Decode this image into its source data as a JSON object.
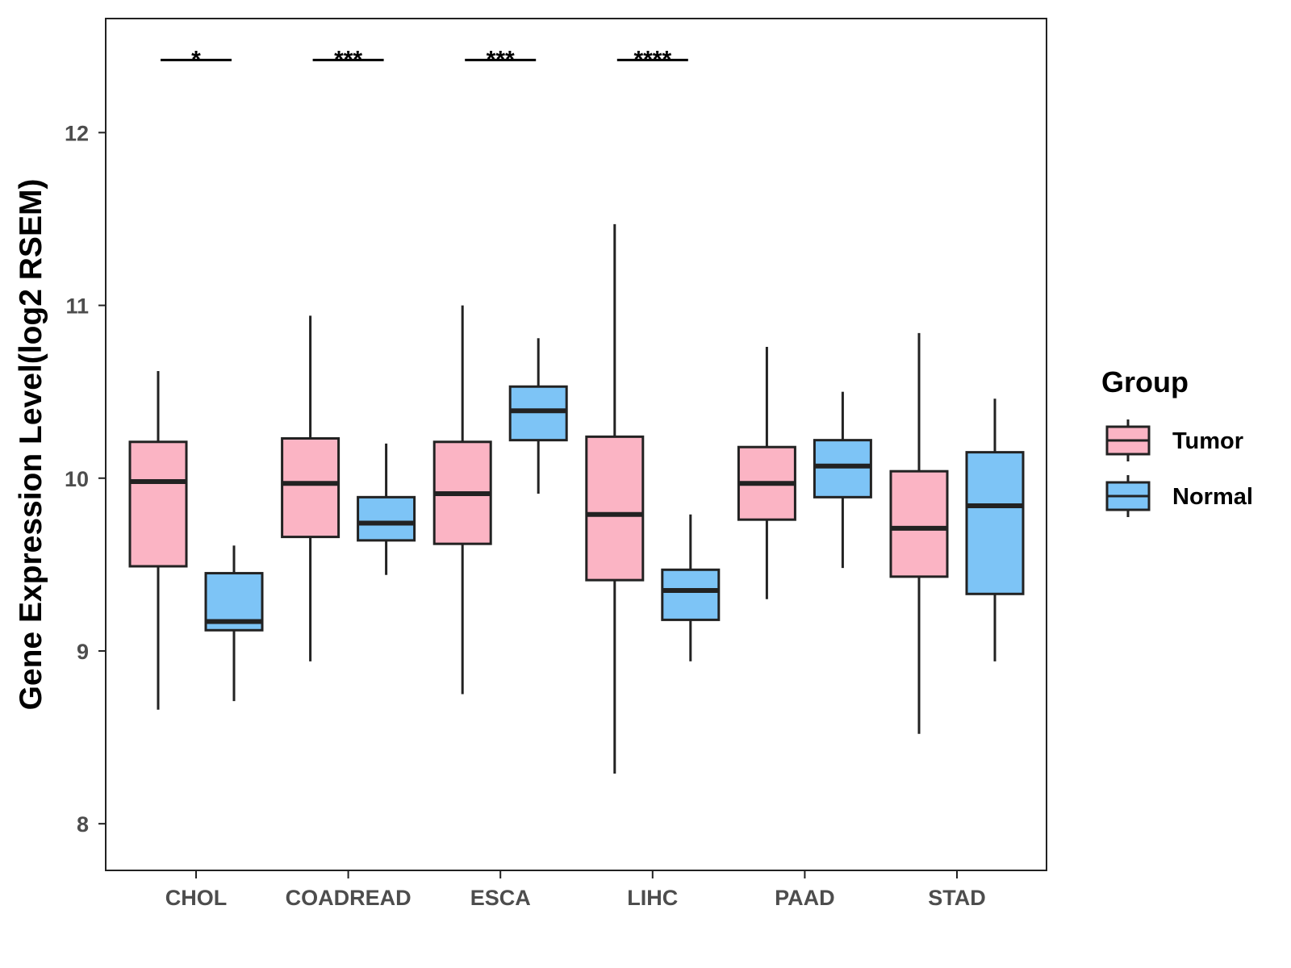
{
  "chart_data": {
    "type": "boxplot",
    "ylabel": "Gene Expression Level(log2 RSEM)",
    "xlabel": "",
    "ylim": [
      7.73,
      12.66
    ],
    "yticks": [
      8,
      9,
      10,
      11,
      12
    ],
    "ytick_labels": [
      "8",
      "9",
      "10",
      "11",
      "12"
    ],
    "categories": [
      "CHOL",
      "COADREAD",
      "ESCA",
      "LIHC",
      "PAAD",
      "STAD"
    ],
    "legend": {
      "title": "Group",
      "position": "right",
      "items": [
        {
          "label": "Tumor",
          "color": "#FBB4C4"
        },
        {
          "label": "Normal",
          "color": "#7DC4F6"
        }
      ]
    },
    "series": [
      {
        "name": "Tumor",
        "color": "#FBB4C4",
        "boxes": [
          {
            "min": 8.66,
            "q1": 9.49,
            "median": 9.98,
            "q3": 10.21,
            "max": 10.62
          },
          {
            "min": 8.94,
            "q1": 9.66,
            "median": 9.97,
            "q3": 10.23,
            "max": 10.94
          },
          {
            "min": 8.75,
            "q1": 9.62,
            "median": 9.91,
            "q3": 10.21,
            "max": 11.0
          },
          {
            "min": 8.29,
            "q1": 9.41,
            "median": 9.79,
            "q3": 10.24,
            "max": 11.47
          },
          {
            "min": 9.3,
            "q1": 9.76,
            "median": 9.97,
            "q3": 10.18,
            "max": 10.76
          },
          {
            "min": 8.52,
            "q1": 9.43,
            "median": 9.71,
            "q3": 10.04,
            "max": 10.84
          }
        ]
      },
      {
        "name": "Normal",
        "color": "#7DC4F6",
        "boxes": [
          {
            "min": 8.71,
            "q1": 9.12,
            "median": 9.17,
            "q3": 9.45,
            "max": 9.61
          },
          {
            "min": 9.44,
            "q1": 9.64,
            "median": 9.74,
            "q3": 9.89,
            "max": 10.2
          },
          {
            "min": 9.91,
            "q1": 10.22,
            "median": 10.39,
            "q3": 10.53,
            "max": 10.81
          },
          {
            "min": 8.94,
            "q1": 9.18,
            "median": 9.35,
            "q3": 9.47,
            "max": 9.79
          },
          {
            "min": 9.48,
            "q1": 9.89,
            "median": 10.07,
            "q3": 10.22,
            "max": 10.5
          },
          {
            "min": 8.94,
            "q1": 9.33,
            "median": 9.84,
            "q3": 10.15,
            "max": 10.46
          }
        ]
      }
    ],
    "significance": [
      {
        "category": "CHOL",
        "label": "*"
      },
      {
        "category": "COADREAD",
        "label": "***"
      },
      {
        "category": "ESCA",
        "label": "***"
      },
      {
        "category": "LIHC",
        "label": "****"
      }
    ],
    "significance_y": 12.42
  }
}
